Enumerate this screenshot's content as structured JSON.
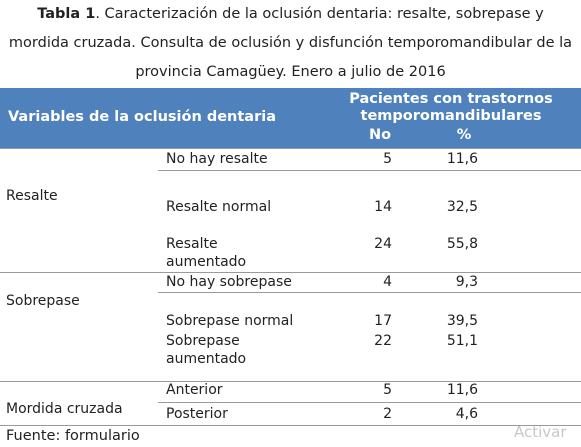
{
  "caption": {
    "label": "Tabla 1",
    "text": ". Caracterización de la oclusión dentaria: resalte, sobrepase y mordida cruzada. Consulta de oclusión y disfunción temporomandibular de la provincia Camagüey. Enero a julio de 2016"
  },
  "table": {
    "header": {
      "variables": "Variables de la oclusión dentaria",
      "group": "Pacientes con trastornos temporomandibulares",
      "no": "No",
      "pct": "%"
    },
    "groups": [
      {
        "name": "Resalte",
        "rows": [
          [
            "No hay resalte",
            "5",
            "11,6"
          ],
          [
            "Resalte normal",
            "14",
            "32,5"
          ],
          [
            "Resalte aumentado",
            "24",
            "55,8"
          ]
        ]
      },
      {
        "name": "Sobrepase",
        "rows": [
          [
            "No hay sobrepase",
            "4",
            "9,3"
          ],
          [
            "Sobrepase normal",
            "17",
            "39,5"
          ],
          [
            "Sobrepase aumentado",
            "22",
            "51,1"
          ]
        ]
      },
      {
        "name": "Mordida cruzada",
        "rows": [
          [
            "Anterior",
            "5",
            "11,6"
          ],
          [
            "Posterior",
            "2",
            "4,6"
          ]
        ]
      }
    ]
  },
  "footer": "Fuente: formulario",
  "watermark": "Activar"
}
